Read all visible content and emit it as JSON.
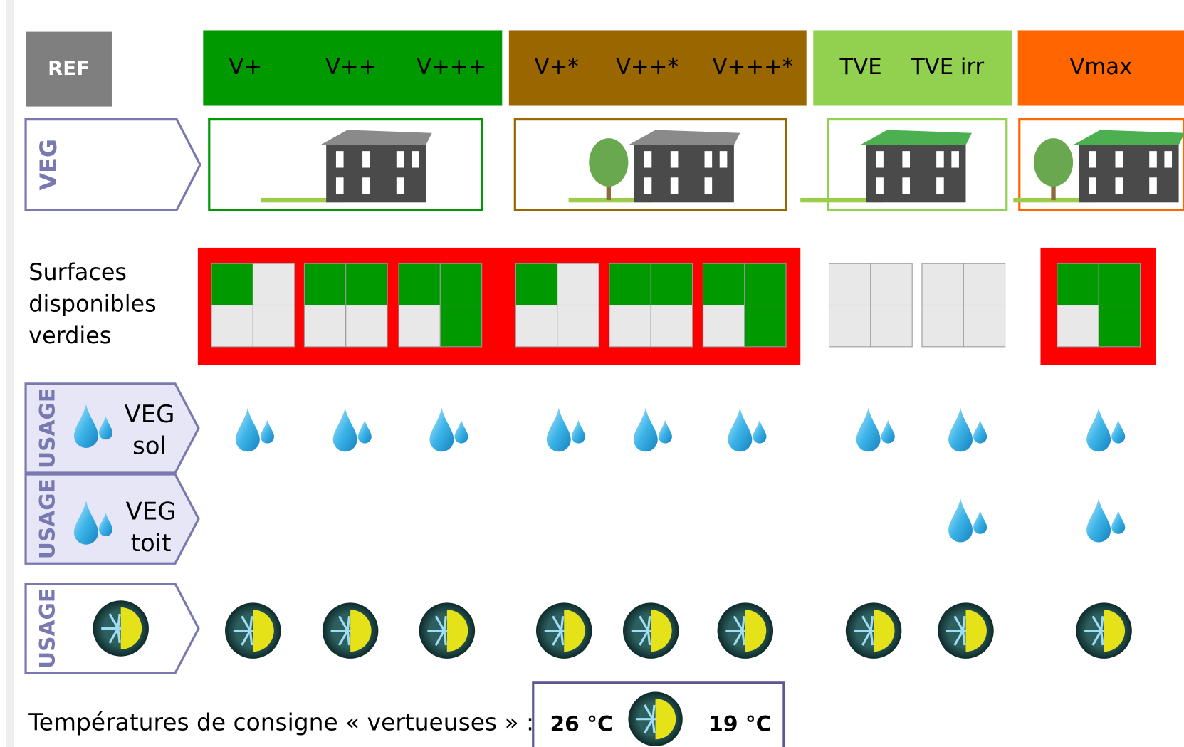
{
  "header": {
    "ref": "REF",
    "groups": [
      {
        "labels": [
          "V+",
          "V++",
          "V+++"
        ]
      },
      {
        "labels": [
          "V+*",
          "V++*",
          "V+++*"
        ]
      },
      {
        "labels": [
          "TVE",
          "TVE irr"
        ]
      },
      {
        "labels": [
          "Vmax"
        ]
      }
    ]
  },
  "rows": {
    "veg": "VEG",
    "surfaces": [
      "Surfaces",
      "disponibles",
      "verdies"
    ],
    "usage_sol": {
      "usage": "USAGE",
      "lines": [
        "VEG",
        "sol"
      ]
    },
    "usage_toit": {
      "usage": "USAGE",
      "lines": [
        "VEG",
        "toit"
      ]
    },
    "usage_clim": {
      "usage": "USAGE"
    }
  },
  "surfaces": [
    [
      1,
      0,
      0,
      0
    ],
    [
      1,
      1,
      0,
      0
    ],
    [
      1,
      1,
      0,
      1
    ],
    [
      1,
      0,
      0,
      0
    ],
    [
      1,
      1,
      0,
      0
    ],
    [
      1,
      1,
      0,
      1
    ],
    [
      0,
      0,
      0,
      0
    ],
    [
      0,
      0,
      0,
      0
    ],
    [
      1,
      1,
      0,
      1
    ]
  ],
  "usage_sol": [
    1,
    1,
    1,
    1,
    1,
    1,
    1,
    1,
    1
  ],
  "usage_toit": [
    0,
    0,
    0,
    0,
    0,
    0,
    0,
    1,
    1
  ],
  "usage_clim": [
    1,
    1,
    1,
    1,
    1,
    1,
    1,
    1,
    1
  ],
  "footer": {
    "text": "Températures de consigne « vertueuses » :",
    "cold": "26 °C",
    "hot": "19 °C"
  }
}
